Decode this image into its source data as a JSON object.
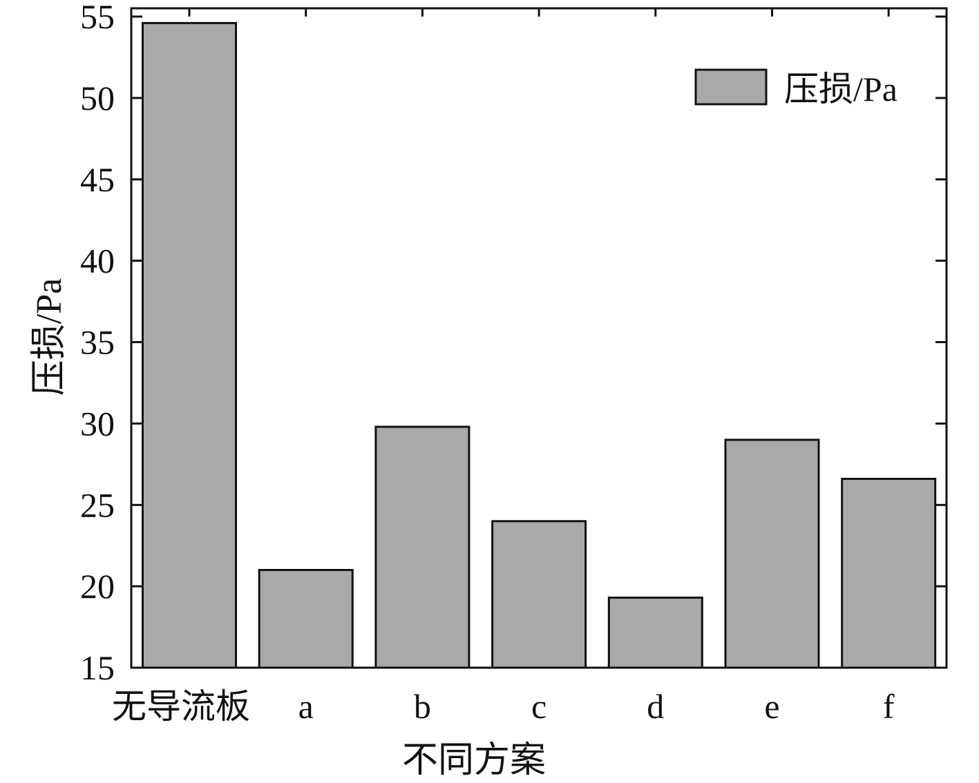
{
  "chart_data": {
    "type": "bar",
    "categories": [
      "无导流板",
      "a",
      "b",
      "c",
      "d",
      "e",
      "f"
    ],
    "series": [
      {
        "name": "压损/Pa",
        "values": [
          54.6,
          21.0,
          29.8,
          24.0,
          19.3,
          29.0,
          26.6
        ]
      }
    ],
    "xlabel": "不同方案",
    "ylabel": "压损/Pa",
    "ylim": [
      15,
      55
    ],
    "yticks": [
      15,
      20,
      25,
      30,
      35,
      40,
      45,
      50,
      55
    ],
    "grid": false,
    "legend_position": "top-right",
    "bar_color": "#a9a9a9",
    "edge_color": "#111111"
  }
}
